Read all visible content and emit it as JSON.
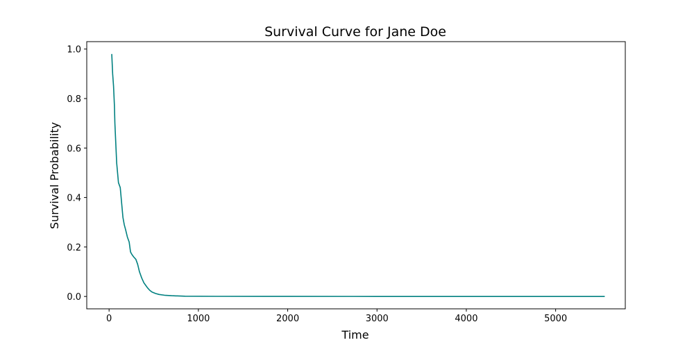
{
  "chart_data": {
    "type": "line",
    "title": "Survival Curve for Jane Doe",
    "xlabel": "Time",
    "ylabel": "Survival Probability",
    "xlim": [
      -250,
      5780
    ],
    "ylim": [
      -0.05,
      1.03
    ],
    "xticks": [
      0,
      1000,
      2000,
      3000,
      4000,
      5000
    ],
    "xtick_labels": [
      "0",
      "1000",
      "2000",
      "3000",
      "4000",
      "5000"
    ],
    "yticks": [
      0.0,
      0.2,
      0.4,
      0.6,
      0.8,
      1.0
    ],
    "ytick_labels": [
      "0.0",
      "0.2",
      "0.4",
      "0.6",
      "0.8",
      "1.0"
    ],
    "grid": false,
    "series": [
      {
        "color": "#008080",
        "points": [
          [
            30,
            0.98
          ],
          [
            40,
            0.9
          ],
          [
            50,
            0.85
          ],
          [
            60,
            0.77
          ],
          [
            65,
            0.7
          ],
          [
            75,
            0.62
          ],
          [
            85,
            0.54
          ],
          [
            95,
            0.5
          ],
          [
            105,
            0.46
          ],
          [
            125,
            0.44
          ],
          [
            140,
            0.38
          ],
          [
            155,
            0.32
          ],
          [
            170,
            0.29
          ],
          [
            185,
            0.27
          ],
          [
            205,
            0.24
          ],
          [
            225,
            0.22
          ],
          [
            240,
            0.18
          ],
          [
            255,
            0.17
          ],
          [
            275,
            0.16
          ],
          [
            300,
            0.15
          ],
          [
            320,
            0.13
          ],
          [
            340,
            0.1
          ],
          [
            365,
            0.075
          ],
          [
            390,
            0.055
          ],
          [
            410,
            0.045
          ],
          [
            430,
            0.035
          ],
          [
            455,
            0.025
          ],
          [
            480,
            0.018
          ],
          [
            520,
            0.012
          ],
          [
            560,
            0.008
          ],
          [
            620,
            0.005
          ],
          [
            700,
            0.003
          ],
          [
            850,
            0.001
          ],
          [
            1200,
            0.0005
          ],
          [
            2000,
            0.0002
          ],
          [
            3000,
            0.0001
          ],
          [
            4000,
            0.0001
          ],
          [
            5000,
            0.0
          ],
          [
            5550,
            0.0
          ]
        ]
      }
    ]
  }
}
